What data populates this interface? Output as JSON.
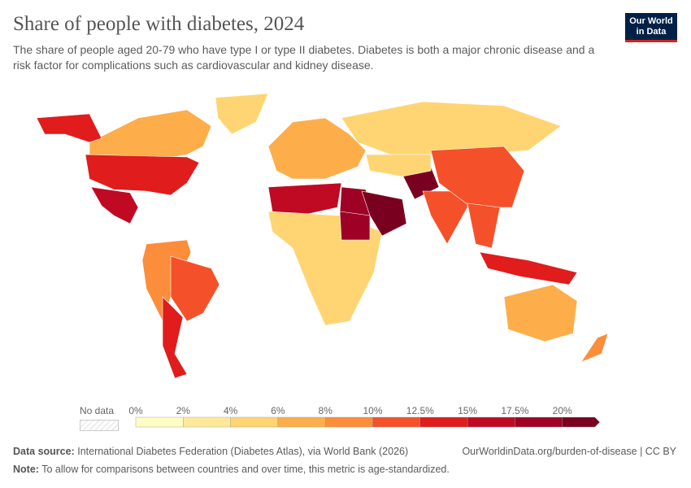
{
  "header": {
    "title": "Share of people with diabetes, 2024",
    "subtitle": "The share of people aged 20-79 who have type I or type II diabetes. Diabetes is both a major chronic disease and a risk factor for complications such as cardiovascular and kidney disease.",
    "logo": "Our World in Data"
  },
  "legend": {
    "no_data_label": "No data",
    "ticks": [
      "0%",
      "2%",
      "4%",
      "6%",
      "8%",
      "10%",
      "12.5%",
      "15%",
      "17.5%",
      "20%"
    ],
    "colors": [
      "#fffcc5",
      "#fee999",
      "#fed572",
      "#fdae4b",
      "#fc8d3b",
      "#f4512a",
      "#e01c1c",
      "#c00a24",
      "#9f0025",
      "#7a0020"
    ],
    "no_data_color": "#eeeeee"
  },
  "regions": [
    {
      "name": "Canada",
      "bin": 3
    },
    {
      "name": "United States",
      "bin": 6
    },
    {
      "name": "Alaska",
      "bin": 6
    },
    {
      "name": "Greenland",
      "bin": 2
    },
    {
      "name": "Mexico",
      "bin": 7
    },
    {
      "name": "South America",
      "bin": 4
    },
    {
      "name": "Brazil",
      "bin": 5
    },
    {
      "name": "Argentina",
      "bin": 6
    },
    {
      "name": "Europe",
      "bin": 3
    },
    {
      "name": "Russia",
      "bin": 2
    },
    {
      "name": "North Africa",
      "bin": 7
    },
    {
      "name": "Egypt",
      "bin": 8
    },
    {
      "name": "Sub-Saharan Africa",
      "bin": 2
    },
    {
      "name": "Sudan",
      "bin": 8
    },
    {
      "name": "Arabian Peninsula",
      "bin": 9
    },
    {
      "name": "Pakistan",
      "bin": 9
    },
    {
      "name": "India",
      "bin": 5
    },
    {
      "name": "China",
      "bin": 5
    },
    {
      "name": "Central Asia",
      "bin": 2
    },
    {
      "name": "Southeast Asia",
      "bin": 5
    },
    {
      "name": "Indonesia",
      "bin": 6
    },
    {
      "name": "Australia",
      "bin": 3
    },
    {
      "name": "New Zealand",
      "bin": 4
    }
  ],
  "footer": {
    "source_label": "Data source:",
    "source": "International Diabetes Federation (Diabetes Atlas), via World Bank (2026)",
    "url": "OurWorldinData.org/burden-of-disease | CC BY",
    "note_label": "Note:",
    "note": "To allow for comparisons between countries and over time, this metric is age-standardized."
  }
}
